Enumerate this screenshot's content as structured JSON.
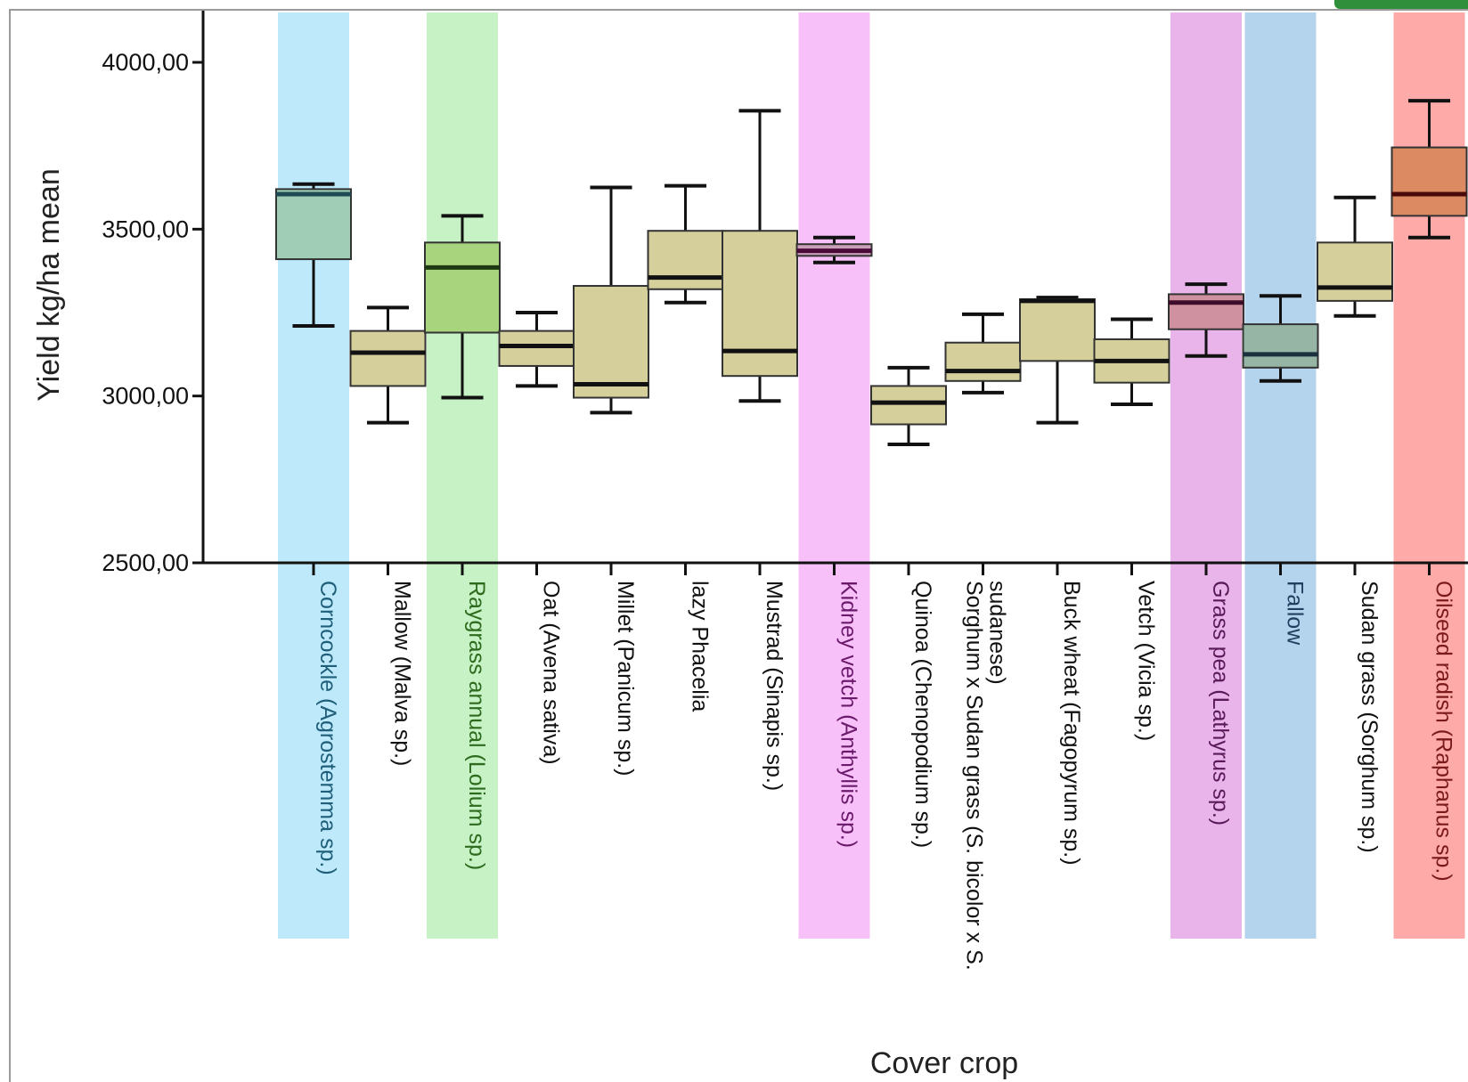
{
  "chart_data": {
    "type": "boxplot",
    "xlabel": "Cover crop",
    "ylabel": "Yield kg/ha mean",
    "ylim": [
      2500,
      4150
    ],
    "yticks": [
      2500,
      3000,
      3500,
      4000
    ],
    "ytick_labels": [
      "2500,00",
      "3000,00",
      "3500,00",
      "4000,00"
    ],
    "grid": false,
    "categories": [
      {
        "label": "Corncockle (Agrostemma sp.)",
        "min": 3210,
        "q1": 3410,
        "median": 3605,
        "q3": 3620,
        "max": 3635,
        "highlight": "#bde9fa",
        "box_color": "#9fcdb5",
        "median_color": "#1f4b55",
        "label_color": "#1f5f7a"
      },
      {
        "label": "Mallow (Malva sp.)",
        "min": 2920,
        "q1": 3030,
        "median": 3130,
        "q3": 3195,
        "max": 3265,
        "highlight": null,
        "box_color": "#d4cf9b",
        "median_color": "#111111",
        "label_color": "#111111"
      },
      {
        "label": "Raygrass annual (Lolium sp.)",
        "min": 2995,
        "q1": 3190,
        "median": 3385,
        "q3": 3460,
        "max": 3540,
        "highlight": "#c6f2c5",
        "box_color": "#a9d47e",
        "median_color": "#1e3a12",
        "label_color": "#2e6b1e"
      },
      {
        "label": "Oat (Avena sativa)",
        "min": 3030,
        "q1": 3090,
        "median": 3150,
        "q3": 3195,
        "max": 3250,
        "highlight": null,
        "box_color": "#d4cf9b",
        "median_color": "#111111",
        "label_color": "#111111"
      },
      {
        "label": "Millet (Panicum sp.)",
        "min": 2950,
        "q1": 2995,
        "median": 3035,
        "q3": 3330,
        "max": 3625,
        "highlight": null,
        "box_color": "#d4cf9b",
        "median_color": "#111111",
        "label_color": "#111111"
      },
      {
        "label": "lazy Phacelia",
        "min": 3280,
        "q1": 3320,
        "median": 3355,
        "q3": 3495,
        "max": 3630,
        "highlight": null,
        "box_color": "#d4cf9b",
        "median_color": "#111111",
        "label_color": "#111111"
      },
      {
        "label": "Mustrad (Sinapis sp.)",
        "min": 2985,
        "q1": 3060,
        "median": 3135,
        "q3": 3495,
        "max": 3855,
        "highlight": null,
        "box_color": "#d4cf9b",
        "median_color": "#111111",
        "label_color": "#111111"
      },
      {
        "label": "Kidney vetch (Anthyllis sp.)",
        "min": 3400,
        "q1": 3420,
        "median": 3435,
        "q3": 3455,
        "max": 3475,
        "highlight": "#f8c0f8",
        "box_color": "#c9a0b8",
        "median_color": "#4a0a3a",
        "label_color": "#6b1a6b"
      },
      {
        "label": "Quinoa (Chenopodium sp.)",
        "min": 2855,
        "q1": 2915,
        "median": 2980,
        "q3": 3030,
        "max": 3085,
        "highlight": null,
        "box_color": "#d4cf9b",
        "median_color": "#111111",
        "label_color": "#111111"
      },
      {
        "label": "Sorghum x Sudan grass (S. bicolor x S. sudanese)",
        "min": 3010,
        "q1": 3045,
        "median": 3075,
        "q3": 3160,
        "max": 3245,
        "highlight": null,
        "box_color": "#d4cf9b",
        "median_color": "#111111",
        "label_color": "#111111"
      },
      {
        "label": "Buck wheat (Fagopyrum sp.)",
        "min": 2920,
        "q1": 3105,
        "median": 3285,
        "q3": 3290,
        "max": 3295,
        "highlight": null,
        "box_color": "#d4cf9b",
        "median_color": "#111111",
        "label_color": "#111111"
      },
      {
        "label": "Vetch (Vicia sp.)",
        "min": 2975,
        "q1": 3040,
        "median": 3105,
        "q3": 3170,
        "max": 3230,
        "highlight": null,
        "box_color": "#d4cf9b",
        "median_color": "#111111",
        "label_color": "#111111"
      },
      {
        "label": "Grass pea (Lathyrus sp.)",
        "min": 3120,
        "q1": 3200,
        "median": 3280,
        "q3": 3305,
        "max": 3335,
        "highlight": "#e8b4ea",
        "box_color": "#cf90a0",
        "median_color": "#3d0c2a",
        "label_color": "#5a1a5a"
      },
      {
        "label": "Fallow",
        "min": 3045,
        "q1": 3085,
        "median": 3125,
        "q3": 3215,
        "max": 3300,
        "highlight": "#b4d3ec",
        "box_color": "#97b5a5",
        "median_color": "#1b3140",
        "label_color": "#1f3f5f"
      },
      {
        "label": "Sudan grass (Sorghum sp.)",
        "min": 3240,
        "q1": 3285,
        "median": 3325,
        "q3": 3460,
        "max": 3595,
        "highlight": null,
        "box_color": "#d4cf9b",
        "median_color": "#111111",
        "label_color": "#111111"
      },
      {
        "label": "Oilseed radish (Raphanus sp.)",
        "min": 3475,
        "q1": 3540,
        "median": 3605,
        "q3": 3745,
        "max": 3885,
        "highlight": "#fdaaa8",
        "box_color": "#db8a62",
        "median_color": "#4a0a0a",
        "label_color": "#7a1a1a"
      }
    ]
  }
}
